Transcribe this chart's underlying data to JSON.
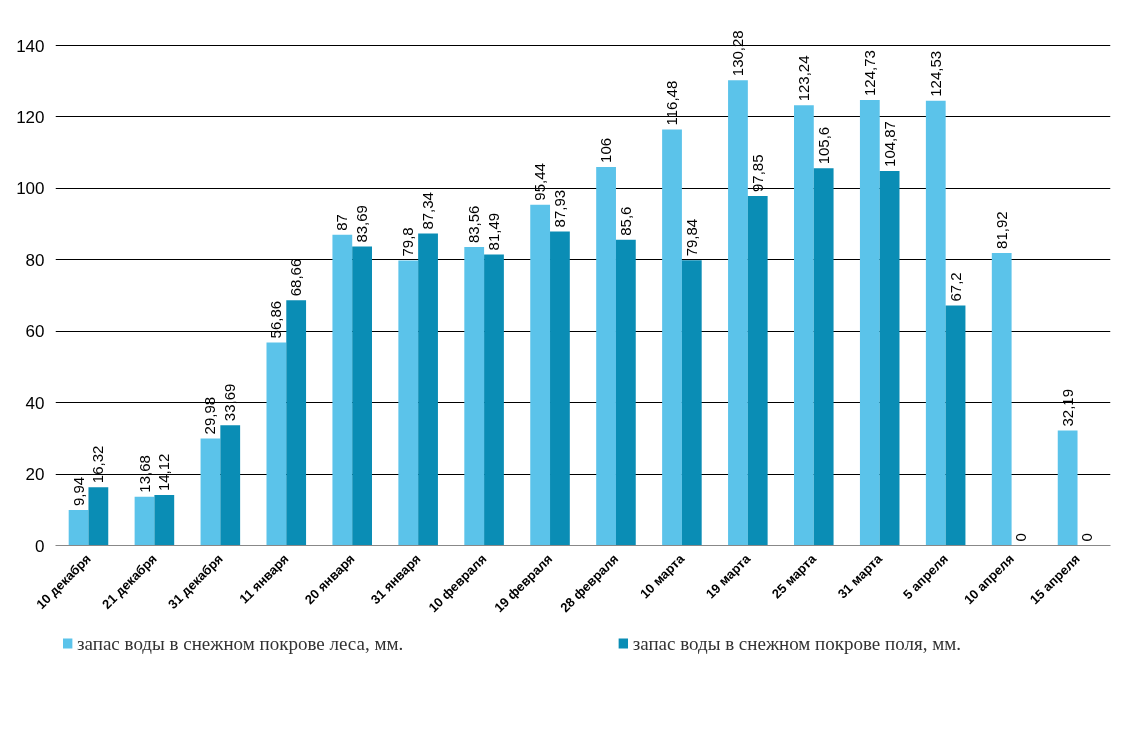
{
  "chart_data": {
    "type": "bar",
    "categories": [
      "10 декабря",
      "21 декабря",
      "31 декабря",
      "11 января",
      "20 января",
      "31 января",
      "10 февраля",
      "19 февраля",
      "28 февраля",
      "10 марта",
      "19 марта",
      "25 марта",
      "31 марта",
      "5 апреля",
      "10 апреля",
      "15 апреля"
    ],
    "series": [
      {
        "name": "запас воды в снежном покрове леса, мм.",
        "color": "#5bc3ea",
        "values": [
          9.94,
          13.68,
          29.98,
          56.86,
          87,
          79.8,
          83.56,
          95.44,
          106,
          116.48,
          130.28,
          123.24,
          124.73,
          124.53,
          81.92,
          32.19
        ],
        "value_labels": [
          "9,94",
          "13,68",
          "29,98",
          "56,86",
          "87",
          "79,8",
          "83,56",
          "95,44",
          "106",
          "116,48",
          "130,28",
          "123,24",
          "124,73",
          "124,53",
          "81,92",
          "32,19"
        ]
      },
      {
        "name": "запас воды в снежном покрове поля, мм.",
        "color": "#0a8db5",
        "values": [
          16.32,
          14.12,
          33.69,
          68.66,
          83.69,
          87.34,
          81.49,
          87.93,
          85.6,
          79.84,
          97.85,
          105.6,
          104.87,
          67.2,
          0,
          0
        ],
        "value_labels": [
          "16,32",
          "14,12",
          "33,69",
          "68,66",
          "83,69",
          "87,34",
          "81,49",
          "87,93",
          "85,6",
          "79,84",
          "97,85",
          "105,6",
          "104,87",
          "67,2",
          "0",
          "0"
        ]
      }
    ],
    "ylim": [
      0,
      140
    ],
    "yticks": [
      0,
      20,
      40,
      60,
      80,
      100,
      120,
      140
    ],
    "grid": "y",
    "legend": "bottom"
  }
}
